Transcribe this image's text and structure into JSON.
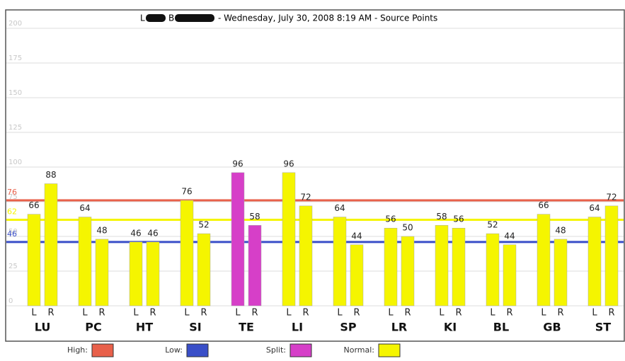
{
  "chart_data": {
    "type": "bar",
    "name_initials": [
      "L",
      "B"
    ],
    "title": "- Wednesday, July 30, 2008 8:19 AM - Source Points",
    "categories": [
      "LU",
      "PC",
      "HT",
      "SI",
      "TE",
      "LI",
      "SP",
      "LR",
      "KI",
      "BL",
      "GB",
      "ST"
    ],
    "series": [
      {
        "name": "L",
        "values": [
          66,
          64,
          46,
          76,
          96,
          96,
          64,
          56,
          58,
          52,
          66,
          64
        ],
        "colors": [
          "#f5f500",
          "#f5f500",
          "#f5f500",
          "#f5f500",
          "#d63fc8",
          "#f5f500",
          "#f5f500",
          "#f5f500",
          "#f5f500",
          "#f5f500",
          "#f5f500",
          "#f5f500"
        ]
      },
      {
        "name": "R",
        "values": [
          88,
          48,
          46,
          52,
          58,
          72,
          44,
          50,
          56,
          44,
          48,
          72
        ],
        "colors": [
          "#f5f500",
          "#f5f500",
          "#f5f500",
          "#f5f500",
          "#d63fc8",
          "#f5f500",
          "#f5f500",
          "#f5f500",
          "#f5f500",
          "#f5f500",
          "#f5f500",
          "#f5f500"
        ]
      }
    ],
    "reference_lines": [
      {
        "value": 76,
        "color": "#e8604a"
      },
      {
        "value": 62,
        "color": "#f5f500"
      },
      {
        "value": 46,
        "color": "#3a4fc8"
      }
    ],
    "ylim": [
      0,
      200
    ],
    "yticks": [
      0,
      25,
      50,
      75,
      100,
      125,
      150,
      175,
      200
    ],
    "grid": true,
    "legend": [
      {
        "label": "High:",
        "color": "#e8604a"
      },
      {
        "label": "Low:",
        "color": "#3a4fc8"
      },
      {
        "label": "Split:",
        "color": "#d63fc8"
      },
      {
        "label": "Normal:",
        "color": "#f5f500"
      }
    ]
  }
}
